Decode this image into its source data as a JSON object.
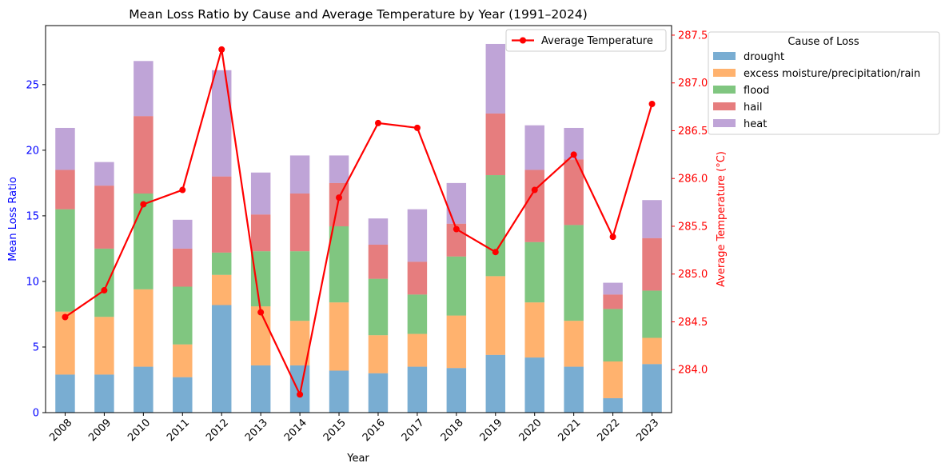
{
  "chart_data": {
    "type": "bar",
    "stacked": true,
    "title": "Mean Loss Ratio by Cause and Average Temperature by Year (1991–2024)",
    "xlabel": "Year",
    "ylabel": "Mean Loss Ratio",
    "y2label": "Average Temperature (°C)",
    "ylim": [
      0,
      29.5
    ],
    "y2lim": [
      283.55,
      287.6
    ],
    "yticks": [
      0,
      5,
      10,
      15,
      20,
      25
    ],
    "y2ticks": [
      "284.0",
      "284.5",
      "285.0",
      "285.5",
      "286.0",
      "286.5",
      "287.0",
      "287.5"
    ],
    "categories": [
      "2008",
      "2009",
      "2010",
      "2011",
      "2012",
      "2013",
      "2014",
      "2015",
      "2016",
      "2017",
      "2018",
      "2019",
      "2020",
      "2021",
      "2022",
      "2023"
    ],
    "series": [
      {
        "name": "drought",
        "color": "#1f77b4",
        "values": [
          2.9,
          2.9,
          3.5,
          2.7,
          8.2,
          3.6,
          3.6,
          3.2,
          3.0,
          3.5,
          3.4,
          4.4,
          4.2,
          3.5,
          1.1,
          3.7
        ]
      },
      {
        "name": "excess moisture/precipitation/rain",
        "color": "#ff7f0e",
        "values": [
          4.8,
          4.4,
          5.9,
          2.5,
          2.3,
          4.5,
          3.4,
          5.2,
          2.9,
          2.5,
          4.0,
          6.0,
          4.2,
          3.5,
          2.8,
          2.0
        ]
      },
      {
        "name": "flood",
        "color": "#2ca02c",
        "values": [
          7.8,
          5.2,
          7.3,
          4.4,
          1.7,
          4.2,
          5.3,
          5.8,
          4.3,
          3.0,
          4.5,
          7.7,
          4.6,
          7.3,
          4.0,
          3.6
        ]
      },
      {
        "name": "hail",
        "color": "#d62728",
        "values": [
          3.0,
          4.8,
          5.9,
          2.9,
          5.8,
          2.8,
          4.4,
          3.3,
          2.6,
          2.5,
          2.5,
          4.7,
          5.5,
          5.0,
          1.1,
          4.0
        ]
      },
      {
        "name": "heat",
        "color": "#9467bd",
        "values": [
          3.2,
          1.8,
          4.2,
          2.2,
          8.1,
          3.2,
          2.9,
          2.1,
          2.0,
          4.0,
          3.1,
          5.3,
          3.4,
          2.4,
          0.9,
          2.9
        ]
      }
    ],
    "line": {
      "name": "Average Temperature",
      "color": "#ff0000",
      "values": [
        284.55,
        284.83,
        285.73,
        285.88,
        287.35,
        284.6,
        283.74,
        285.8,
        286.58,
        286.53,
        285.47,
        285.23,
        285.88,
        286.25,
        285.39,
        286.78
      ]
    },
    "legend_title": "Cause of Loss",
    "legend_placement": "outside right",
    "line_legend_placement": "top-right",
    "grid": false
  }
}
